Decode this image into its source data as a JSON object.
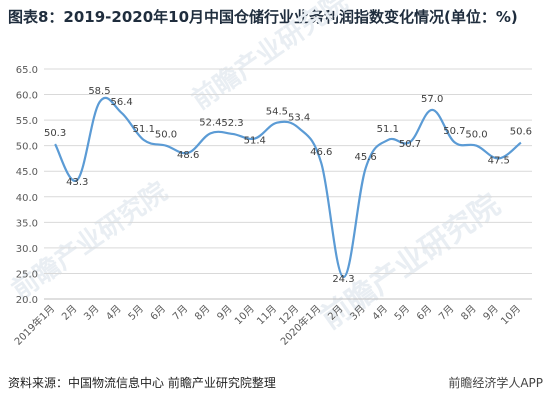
{
  "header": {
    "title": "图表8：2019-2020年10月中国仓储行业业务利润指数变化情况(单位：%)"
  },
  "footer": {
    "source": "资料来源：中国物流信息中心 前瞻产业研究院整理",
    "brand": "前瞻经济学人APP"
  },
  "watermark": {
    "text": "前瞻产业研究院"
  },
  "colors": {
    "line": "#5b9bd5",
    "grid": "#d9d9d9",
    "text": "#595959"
  },
  "chart_data": {
    "type": "line",
    "categories": [
      "2019年1月",
      "2月",
      "3月",
      "4月",
      "5月",
      "6月",
      "7月",
      "8月",
      "9月",
      "10月",
      "11月",
      "12月",
      "2020年1月",
      "2月",
      "3月",
      "4月",
      "5月",
      "6月",
      "7月",
      "8月",
      "9月",
      "10月"
    ],
    "series": [
      {
        "values": [
          50.3,
          43.3,
          58.5,
          56.4,
          51.1,
          50.0,
          48.6,
          52.4,
          52.3,
          51.4,
          54.5,
          53.4,
          46.6,
          24.3,
          45.6,
          51.1,
          50.7,
          57.0,
          50.7,
          50.0,
          47.5,
          50.6
        ]
      }
    ],
    "data_labels": [
      "50.3",
      "43.3",
      "58.5",
      "56.4",
      "51.1",
      "50.0",
      "48.6",
      "52.4",
      "52.3",
      "51.4",
      "54.5",
      "53.4",
      "46.6",
      "24.3",
      "45.6",
      "51.1",
      "50.7",
      "57.0",
      "50.7",
      "50.0",
      "47.5",
      "50.6"
    ],
    "yticks": [
      "20.0",
      "25.0",
      "30.0",
      "35.0",
      "40.0",
      "45.0",
      "50.0",
      "55.0",
      "60.0",
      "65.0"
    ],
    "ylim": [
      20,
      65
    ],
    "xlabel": "",
    "ylabel": "",
    "grid": true,
    "legend": "none"
  }
}
